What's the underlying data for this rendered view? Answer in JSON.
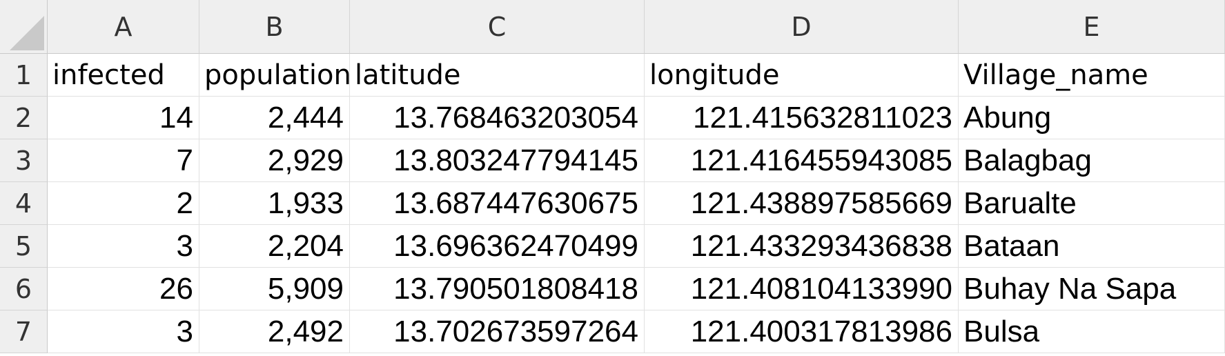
{
  "columns": [
    "A",
    "B",
    "C",
    "D",
    "E"
  ],
  "rows": [
    "1",
    "2",
    "3",
    "4",
    "5",
    "6",
    "7"
  ],
  "header_row": [
    "infected",
    "population",
    "latitude",
    "longitude",
    "Village_name"
  ],
  "data_rows": [
    [
      "14",
      "2,444",
      "13.768463203054",
      "121.415632811023",
      "Abung"
    ],
    [
      "7",
      "2,929",
      "13.803247794145",
      "121.416455943085",
      "Balagbag"
    ],
    [
      "2",
      "1,933",
      "13.687447630675",
      "121.438897585669",
      "Barualte"
    ],
    [
      "3",
      "2,204",
      "13.696362470499",
      "121.433293436838",
      "Bataan"
    ],
    [
      "26",
      "5,909",
      "13.790501808418",
      "121.408104133990",
      "Buhay Na Sapa"
    ],
    [
      "3",
      "2,492",
      "13.702673597264",
      "121.400317813986",
      "Bulsa"
    ]
  ]
}
